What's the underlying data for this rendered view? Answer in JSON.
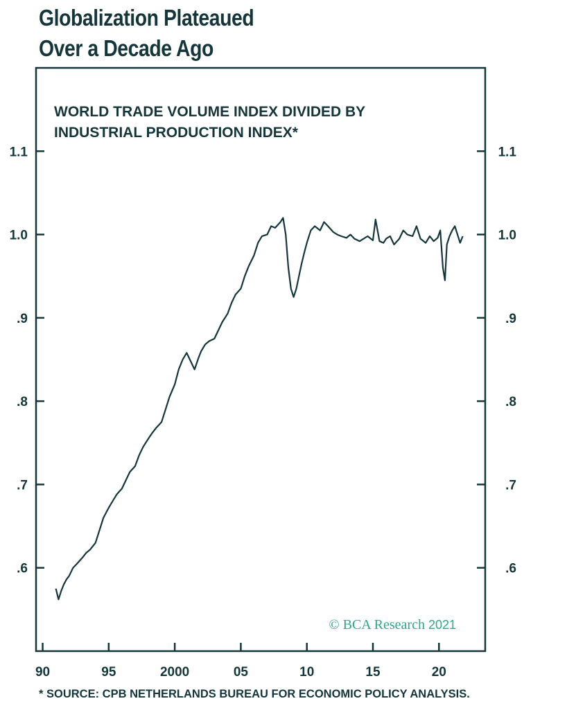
{
  "header": {
    "title_line1": "Globalization Plateaued",
    "title_line2": "Over a Decade Ago"
  },
  "footnote": "* SOURCE: CPB NETHERLANDS BUREAU FOR ECONOMIC POLICY ANALYSIS.",
  "watermark": {
    "symbol": "©",
    "brand": "BCA",
    "word": "Research",
    "year": "2021"
  },
  "colors": {
    "line": "#14363a",
    "text": "#14363a",
    "watermark": "#2aa889"
  },
  "chart_data": {
    "type": "line",
    "title_line1": "WORLD TRADE VOLUME INDEX DIVIDED BY",
    "title_line2": "INDUSTRIAL PRODUCTION INDEX*",
    "xlim": [
      1989.5,
      2023.5
    ],
    "ylim": [
      0.5,
      1.2
    ],
    "x_ticks": [
      1990,
      1995,
      2000,
      2005,
      2010,
      2015,
      2020
    ],
    "x_tick_labels": [
      "90",
      "95",
      "2000",
      "05",
      "10",
      "15",
      "20"
    ],
    "y_ticks": [
      0.6,
      0.7,
      0.8,
      0.9,
      1.0,
      1.1
    ],
    "y_tick_labels": [
      ".6",
      ".7",
      ".8",
      ".9",
      "1.0",
      "1.1"
    ],
    "grid": false,
    "series": [
      {
        "x": [
          1991.0,
          1991.2,
          1991.4,
          1991.6,
          1991.8,
          1992.0,
          1992.3,
          1992.6,
          1993.0,
          1993.3,
          1993.6,
          1994.0,
          1994.3,
          1994.6,
          1995.0,
          1995.3,
          1995.6,
          1996.0,
          1996.3,
          1996.6,
          1997.0,
          1997.3,
          1997.6,
          1998.0,
          1998.3,
          1998.6,
          1999.0,
          1999.3,
          1999.6,
          2000.0,
          2000.3,
          2000.6,
          2000.9,
          2001.2,
          2001.5,
          2001.8,
          2002.0,
          2002.3,
          2002.6,
          2003.0,
          2003.3,
          2003.6,
          2004.0,
          2004.3,
          2004.6,
          2005.0,
          2005.3,
          2005.6,
          2006.0,
          2006.3,
          2006.6,
          2007.0,
          2007.3,
          2007.6,
          2008.0,
          2008.2,
          2008.4,
          2008.6,
          2008.8,
          2009.0,
          2009.2,
          2009.4,
          2009.6,
          2009.8,
          2010.0,
          2010.3,
          2010.6,
          2011.0,
          2011.3,
          2011.6,
          2012.0,
          2012.3,
          2012.6,
          2013.0,
          2013.3,
          2013.6,
          2014.0,
          2014.3,
          2014.6,
          2015.0,
          2015.2,
          2015.5,
          2015.8,
          2016.0,
          2016.3,
          2016.6,
          2017.0,
          2017.3,
          2017.6,
          2018.0,
          2018.3,
          2018.6,
          2019.0,
          2019.3,
          2019.6,
          2019.9,
          2020.1,
          2020.3,
          2020.45,
          2020.6,
          2020.8,
          2021.0,
          2021.2,
          2021.4,
          2021.6,
          2021.8
        ],
        "values": [
          0.575,
          0.562,
          0.572,
          0.58,
          0.586,
          0.59,
          0.6,
          0.605,
          0.612,
          0.618,
          0.622,
          0.63,
          0.645,
          0.66,
          0.672,
          0.68,
          0.688,
          0.695,
          0.705,
          0.715,
          0.722,
          0.735,
          0.745,
          0.755,
          0.762,
          0.768,
          0.775,
          0.79,
          0.805,
          0.82,
          0.838,
          0.85,
          0.858,
          0.848,
          0.838,
          0.852,
          0.86,
          0.868,
          0.872,
          0.875,
          0.885,
          0.895,
          0.905,
          0.918,
          0.928,
          0.935,
          0.95,
          0.962,
          0.975,
          0.99,
          0.998,
          1.0,
          1.01,
          1.008,
          1.015,
          1.02,
          1.0,
          0.96,
          0.935,
          0.925,
          0.935,
          0.95,
          0.965,
          0.978,
          0.99,
          1.005,
          1.01,
          1.005,
          1.015,
          1.01,
          1.003,
          1.0,
          0.998,
          0.996,
          1.0,
          0.995,
          0.992,
          0.995,
          0.998,
          0.993,
          1.018,
          0.992,
          0.99,
          0.995,
          0.998,
          0.988,
          0.995,
          1.005,
          1.0,
          0.998,
          1.01,
          0.995,
          0.99,
          0.998,
          0.992,
          0.996,
          1.005,
          0.96,
          0.945,
          0.988,
          0.998,
          1.005,
          1.01,
          1.0,
          0.99,
          0.998
        ]
      }
    ]
  }
}
